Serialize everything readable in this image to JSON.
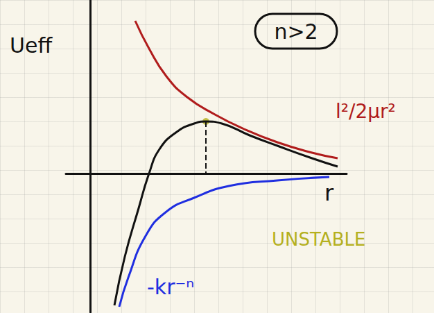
{
  "chart_data": {
    "type": "line",
    "title": "n>2",
    "x_label": "r",
    "y_label": "Ueff",
    "xlim": [
      -3.5,
      37
    ],
    "ylim": [
      -20,
      25
    ],
    "tick_labels": false,
    "series": [
      {
        "name": "l²/2μr²",
        "color": "#b01c1c",
        "x": [
          6.5,
          8.5,
          11,
          14,
          18,
          22,
          27,
          32,
          35.7
        ],
        "values": [
          22,
          18,
          14,
          11,
          8.5,
          6.5,
          4.5,
          3,
          2.2
        ]
      },
      {
        "name": "-kr⁻ⁿ",
        "color": "#1f2ee0",
        "x": [
          4.2,
          5.5,
          8,
          11,
          15,
          20,
          27,
          34.5
        ],
        "values": [
          -19.2,
          -15,
          -9,
          -5.5,
          -3.5,
          -1.8,
          -1,
          -0.5
        ]
      },
      {
        "color": "#111111",
        "x": [
          3.5,
          5,
          7,
          8.5,
          10,
          12.5,
          15,
          16.7,
          19,
          23,
          27,
          32,
          35.7
        ],
        "values": [
          -19,
          -12,
          -5,
          0,
          3.5,
          6,
          7.2,
          7.5,
          7.2,
          5.5,
          4,
          2.2,
          1
        ]
      }
    ],
    "maximum": {
      "x": 16.7,
      "y": 7.5,
      "color": "#b5b01e",
      "line_style": "dashed"
    },
    "annotations": [
      {
        "text": "UNSTABLE",
        "color": "#b5b01e"
      }
    ]
  }
}
